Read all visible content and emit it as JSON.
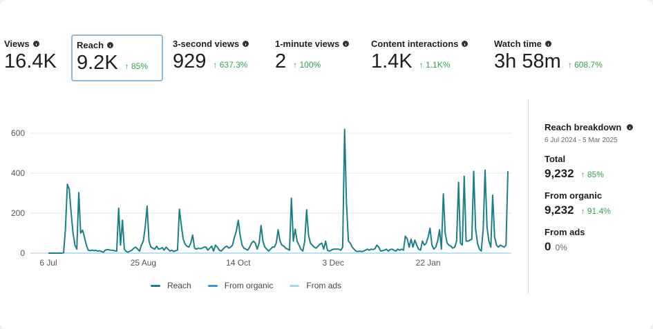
{
  "metrics": [
    {
      "label": "Views",
      "value": "16.4K",
      "change": ""
    },
    {
      "label": "Reach",
      "value": "9.2K",
      "change": "↑ 85%",
      "selected": true
    },
    {
      "label": "3-second views",
      "value": "929",
      "change": "↑ 637.3%"
    },
    {
      "label": "1-minute views",
      "value": "2",
      "change": "↑ 100%"
    },
    {
      "label": "Content interactions",
      "value": "1.4K",
      "change": "↑ 1.1K%"
    },
    {
      "label": "Watch time",
      "value": "3h 58m",
      "change": "↑ 608.7%"
    }
  ],
  "breakdown": {
    "title": "Reach breakdown",
    "date_range": "6 Jul 2024 - 5 Mar 2025",
    "total": {
      "label": "Total",
      "value": "9,232",
      "change": "↑ 85%"
    },
    "organic": {
      "label": "From organic",
      "value": "9,232",
      "change": "↑ 91.4%"
    },
    "ads": {
      "label": "From ads",
      "value": "0",
      "change": "0%"
    }
  },
  "legend": [
    {
      "label": "Reach",
      "color": "#1b7f87"
    },
    {
      "label": "From organic",
      "color": "#3a94d0"
    },
    {
      "label": "From ads",
      "color": "#9fd6ee"
    }
  ],
  "chart_data": {
    "type": "line",
    "x_start": "6 Jul 2024",
    "x_end": "5 Mar 2025",
    "x_interval": "daily",
    "x_tick_labels": [
      "6 Jul",
      "25 Aug",
      "14 Oct",
      "3 Dec",
      "22 Jan"
    ],
    "y_ticks": [
      0,
      200,
      400,
      600
    ],
    "ylim": [
      0,
      650
    ],
    "grid": true,
    "legend_position": "bottom",
    "series": [
      {
        "name": "Reach",
        "color": "#1b7f87",
        "values": [
          0,
          0,
          0,
          0,
          0,
          0,
          0,
          0,
          2,
          120,
          345,
          320,
          200,
          100,
          40,
          20,
          303,
          100,
          115,
          80,
          40,
          15,
          12,
          15,
          12,
          14,
          10,
          12,
          8,
          5,
          15,
          18,
          16,
          15,
          14,
          12,
          10,
          225,
          40,
          165,
          20,
          8,
          5,
          10,
          15,
          25,
          30,
          20,
          10,
          40,
          60,
          130,
          235,
          60,
          30,
          25,
          20,
          35,
          20,
          22,
          28,
          15,
          30,
          20,
          10,
          15,
          8,
          12,
          15,
          220,
          140,
          70,
          45,
          35,
          30,
          50,
          90,
          25,
          20,
          25,
          22,
          25,
          30,
          30,
          15,
          25,
          35,
          10,
          40,
          30,
          15,
          10,
          20,
          30,
          35,
          25,
          30,
          40,
          80,
          110,
          165,
          90,
          40,
          25,
          20,
          15,
          30,
          50,
          60,
          50,
          20,
          50,
          138,
          60,
          30,
          20,
          10,
          20,
          30,
          30,
          50,
          117,
          60,
          40,
          35,
          25,
          20,
          15,
          275,
          60,
          120,
          60,
          40,
          20,
          10,
          60,
          217,
          90,
          50,
          40,
          30,
          25,
          35,
          45,
          50,
          20,
          60,
          15,
          10,
          15,
          20,
          20,
          20,
          20,
          15,
          30,
          620,
          250,
          60,
          50,
          30,
          20,
          10,
          8,
          10,
          8,
          10,
          15,
          20,
          15,
          20,
          18,
          22,
          40,
          30,
          10,
          12,
          15,
          20,
          10,
          18,
          20,
          15,
          10,
          20,
          15,
          20,
          15,
          85,
          70,
          30,
          70,
          30,
          65,
          40,
          20,
          15,
          60,
          40,
          50,
          80,
          125,
          40,
          20,
          30,
          60,
          117,
          20,
          297,
          100,
          50,
          40,
          35,
          25,
          30,
          60,
          355,
          50,
          40,
          385,
          60,
          60,
          65,
          70,
          410,
          120,
          50,
          20,
          10,
          120,
          415,
          130,
          60,
          30,
          290,
          80,
          40,
          30,
          40,
          35,
          30,
          40,
          410
        ]
      },
      {
        "name": "From organic",
        "color": "#3a94d0",
        "values": []
      },
      {
        "name": "From ads",
        "color": "#9fd6ee",
        "values": []
      }
    ]
  }
}
